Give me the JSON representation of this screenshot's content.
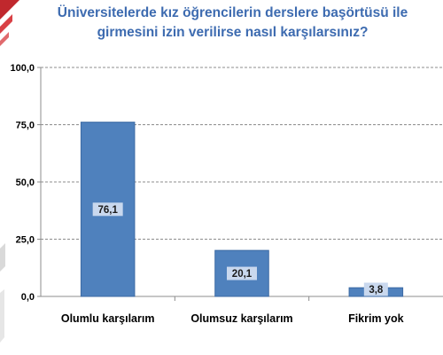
{
  "colors": {
    "bar": "#4f81bd",
    "bar_edge": "#3c6aa4",
    "label_bg": "#c9d8ee",
    "title": "#3d6bb0",
    "grid": "#8c8c8c",
    "accent": "#c0282d"
  },
  "chart_data": {
    "type": "bar",
    "title": "Üniversitelerde kız öğrencilerin derslere başörtüsü ile girmesini izin verilirse nasıl karşılarsınız?",
    "categories": [
      "Olumlu karşılarım",
      "Olumsuz karşılarım",
      "Fikrim yok"
    ],
    "values": [
      76.1,
      20.1,
      3.8
    ],
    "data_labels": [
      "76,1",
      "20,1",
      "3,8"
    ],
    "yticks": [
      "0,0",
      "25,0",
      "50,0",
      "75,0",
      "100,0"
    ],
    "ylim": [
      0,
      100
    ],
    "xlabel": "",
    "ylabel": "",
    "grid": true
  }
}
